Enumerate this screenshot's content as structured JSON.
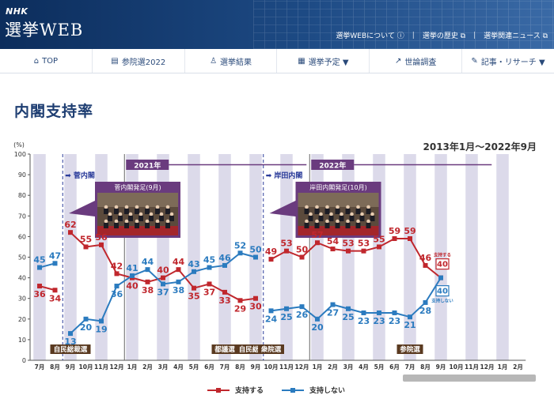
{
  "header": {
    "brand": "NHK",
    "site_name": "選挙WEB",
    "links": [
      "選挙WEBについて ⓘ",
      "選挙の歴史 ⧉",
      "選挙関連ニュース ⧉"
    ]
  },
  "nav": {
    "items": [
      {
        "label": "TOP",
        "icon": "home-icon"
      },
      {
        "label": "参院選2022",
        "icon": "document-icon"
      },
      {
        "label": "選挙結果",
        "icon": "person-icon"
      },
      {
        "label": "選挙予定 ▼",
        "icon": "calendar-icon"
      },
      {
        "label": "世論調査",
        "icon": "trend-icon"
      },
      {
        "label": "記事・リサーチ ▼",
        "icon": "edit-icon"
      }
    ]
  },
  "page": {
    "title": "内閣支持率",
    "period": "2013年1月〜2022年9月"
  },
  "colors": {
    "support": "#c0272d",
    "nonsupport": "#2b7bbf",
    "band": "#dcdaea",
    "purple": "#6a3b7e",
    "event": "#5a3a20"
  },
  "chart_data": {
    "type": "line",
    "ylabel": "(%)",
    "ylim": [
      0,
      100
    ],
    "yticks": [
      0,
      10,
      20,
      30,
      40,
      50,
      60,
      70,
      80,
      90,
      100
    ],
    "x": [
      "7月",
      "8月",
      "9月",
      "10月",
      "11月",
      "12月",
      "1月",
      "2月",
      "3月",
      "4月",
      "5月",
      "6月",
      "7月",
      "8月",
      "9月",
      "10月",
      "11月",
      "12月",
      "1月",
      "2月",
      "3月",
      "4月",
      "5月",
      "6月",
      "7月",
      "8月",
      "9月",
      "10月",
      "11月",
      "12月",
      "1月",
      "2月"
    ],
    "series": [
      {
        "name": "支持する",
        "segments": [
          {
            "x": [
              0,
              1
            ],
            "values": [
              36,
              34
            ]
          },
          {
            "x": [
              2,
              3,
              4,
              5,
              6,
              7,
              8,
              9,
              10,
              11,
              12,
              13,
              14
            ],
            "values": [
              62,
              55,
              56,
              42,
              40,
              38,
              40,
              44,
              35,
              37,
              33,
              29,
              30
            ]
          },
          {
            "x": [
              15,
              16,
              17,
              18,
              19,
              20,
              21,
              22,
              23,
              24,
              25,
              26
            ],
            "values": [
              49,
              53,
              50,
              57,
              54,
              53,
              53,
              55,
              59,
              59,
              46,
              40
            ]
          }
        ]
      },
      {
        "name": "支持しない",
        "segments": [
          {
            "x": [
              0,
              1
            ],
            "values": [
              45,
              47
            ]
          },
          {
            "x": [
              2,
              3,
              4,
              5,
              6,
              7,
              8,
              9,
              10,
              11,
              12,
              13,
              14
            ],
            "values": [
              13,
              20,
              19,
              36,
              41,
              44,
              37,
              38,
              43,
              45,
              46,
              52,
              50
            ]
          },
          {
            "x": [
              15,
              16,
              17,
              18,
              19,
              20,
              21,
              22,
              23,
              24,
              25,
              26
            ],
            "values": [
              24,
              25,
              26,
              20,
              27,
              25,
              23,
              23,
              23,
              21,
              28,
              40
            ]
          }
        ]
      }
    ],
    "years": [
      {
        "label": "2021年",
        "from": 5.5,
        "to": 17.5
      },
      {
        "label": "2022年",
        "from": 17.5,
        "to": 29.5
      }
    ],
    "cabinets": [
      {
        "label": "➡ 菅内閣",
        "at": 1.5
      },
      {
        "label": "➡ 岸田内閣",
        "at": 14.5
      }
    ],
    "photos": [
      {
        "caption": "菅内閣発足(9月)",
        "at": 2
      },
      {
        "caption": "岸田内閣発足(10月)",
        "at": 15
      }
    ],
    "events": [
      {
        "label": "自民総裁選",
        "at": 2
      },
      {
        "label": "都議選",
        "at": 12
      },
      {
        "label": "自民総裁選",
        "at": 14
      },
      {
        "label": "衆院選",
        "at": 15
      },
      {
        "label": "参院選",
        "at": 24
      }
    ],
    "end_labels": {
      "support": "支持する",
      "nonsupport": "支持しない"
    },
    "legend": {
      "position": "bottom-center",
      "items": [
        "支持する",
        "支持しない"
      ]
    }
  }
}
